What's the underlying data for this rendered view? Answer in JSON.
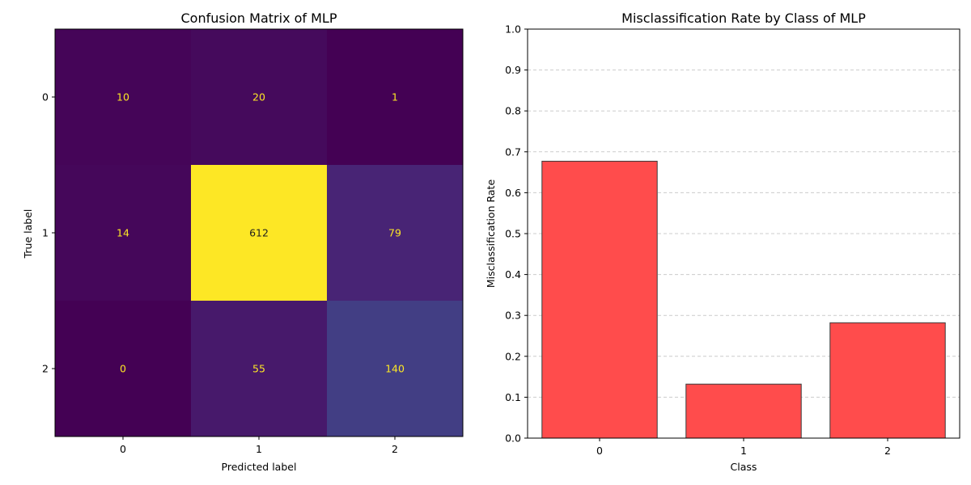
{
  "colors": {
    "bar_fill": "#ff4c4c",
    "bar_edge": "#3a3a3a",
    "grid": "#cccccc",
    "cell_text": "#fde725",
    "axis": "#000000",
    "background": "#ffffff"
  },
  "chart_data": [
    {
      "type": "heatmap",
      "title": "Confusion Matrix of MLP",
      "xlabel": "Predicted label",
      "ylabel": "True label",
      "x_categories": [
        "0",
        "1",
        "2"
      ],
      "y_categories": [
        "0",
        "1",
        "2"
      ],
      "values": [
        [
          10,
          20,
          1
        ],
        [
          14,
          612,
          79
        ],
        [
          0,
          55,
          140
        ]
      ],
      "colormap": "viridis",
      "grid": false
    },
    {
      "type": "bar",
      "title": "Misclassification Rate by Class of MLP",
      "xlabel": "Class",
      "ylabel": "Misclassification Rate",
      "categories": [
        "0",
        "1",
        "2"
      ],
      "values": [
        0.677,
        0.132,
        0.282
      ],
      "ylim": [
        0,
        1
      ],
      "yticks": [
        "0.0",
        "0.1",
        "0.2",
        "0.3",
        "0.4",
        "0.5",
        "0.6",
        "0.7",
        "0.8",
        "0.9",
        "1.0"
      ],
      "grid": true
    }
  ]
}
